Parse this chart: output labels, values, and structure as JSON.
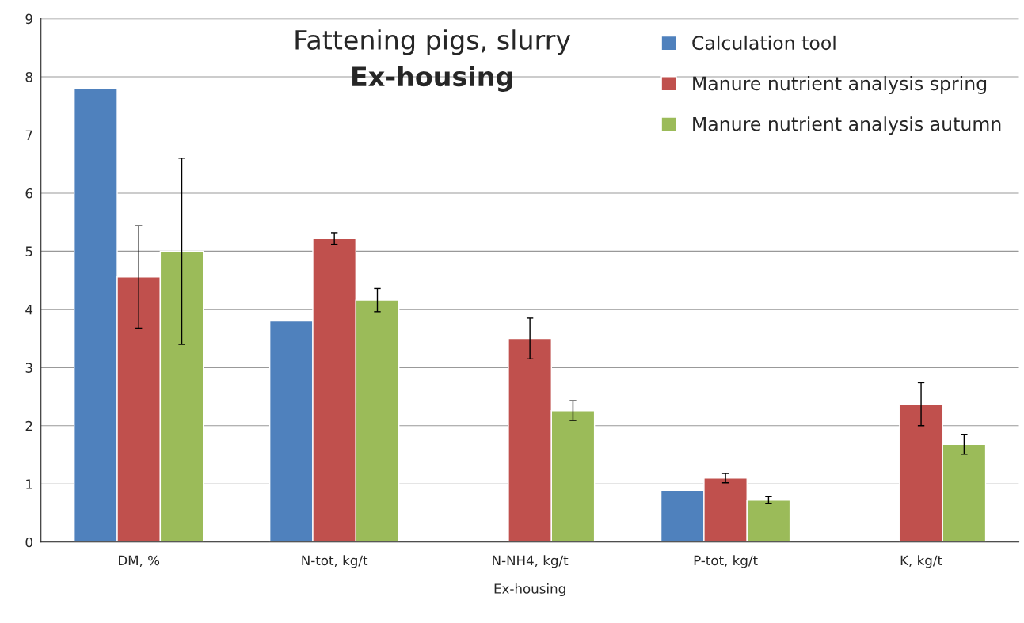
{
  "chart_data": {
    "type": "bar",
    "title": "Fattening pigs, slurry",
    "subtitle": "Ex-housing",
    "xlabel": "Ex-housing",
    "categories": [
      "DM, %",
      "N-tot, kg/t",
      "N-NH4, kg/t",
      "P-tot, kg/t",
      "K, kg/t"
    ],
    "series": [
      {
        "name": "Calculation tool",
        "color": "#4f81bd",
        "values": [
          7.8,
          3.8,
          null,
          0.89,
          null
        ]
      },
      {
        "name": "Manure nutrient analysis spring",
        "color": "#c0504d",
        "values": [
          4.56,
          5.22,
          3.5,
          1.1,
          2.37
        ],
        "errors": [
          0.88,
          0.1,
          0.35,
          0.08,
          0.37
        ]
      },
      {
        "name": "Manure nutrient analysis autumn",
        "color": "#9bbb59",
        "values": [
          5.0,
          4.16,
          2.26,
          0.72,
          1.68
        ],
        "errors": [
          1.6,
          0.2,
          0.17,
          0.06,
          0.17
        ]
      }
    ],
    "ylim": [
      0,
      9
    ],
    "yticks": [
      0,
      1,
      2,
      3,
      4,
      5,
      6,
      7,
      8,
      9
    ],
    "grid": "y",
    "legend": "top right"
  }
}
